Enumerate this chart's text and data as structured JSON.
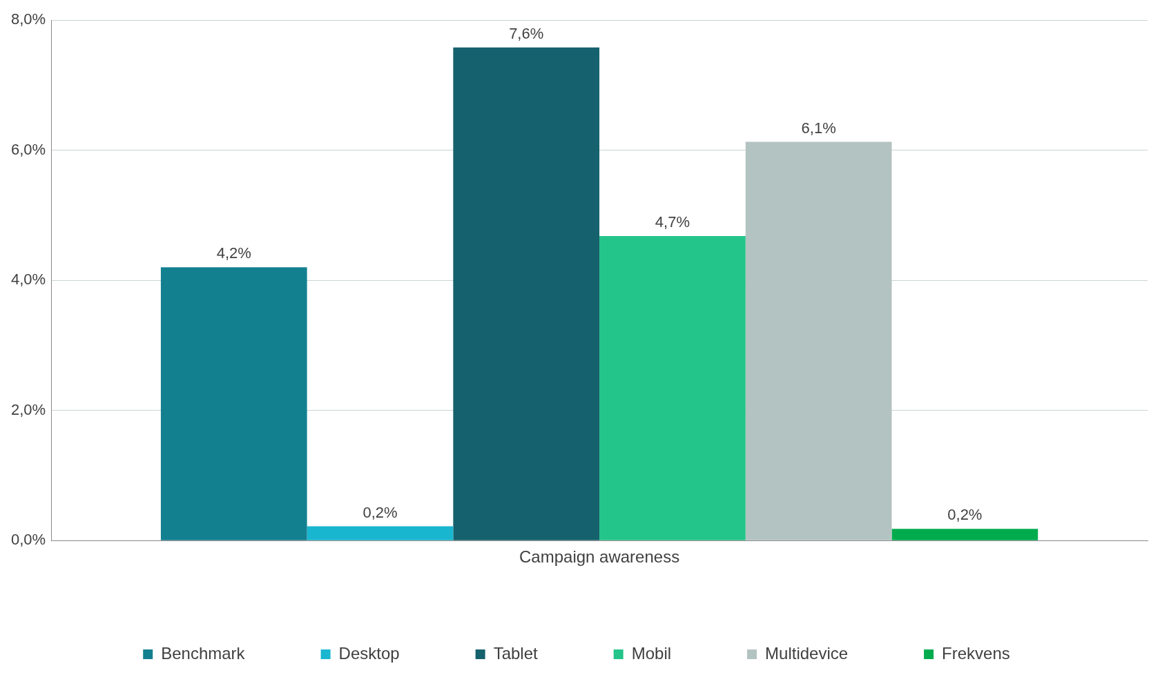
{
  "chart_data": {
    "type": "bar",
    "categories": [
      "Campaign awareness"
    ],
    "series": [
      {
        "name": "Benchmark",
        "color": "#138090",
        "values": [
          4.2
        ],
        "value_labels": [
          "4,2%"
        ]
      },
      {
        "name": "Desktop",
        "color": "#19b6d0",
        "values": [
          0.22
        ],
        "value_labels": [
          "0,2%"
        ]
      },
      {
        "name": "Tablet",
        "color": "#15616d",
        "values": [
          7.58
        ],
        "value_labels": [
          "7,6%"
        ]
      },
      {
        "name": "Mobil",
        "color": "#23c58a",
        "values": [
          4.68
        ],
        "value_labels": [
          "4,7%"
        ]
      },
      {
        "name": "Multidevice",
        "color": "#b3c3c2",
        "values": [
          6.13
        ],
        "value_labels": [
          "6,1%"
        ]
      },
      {
        "name": "Frekvens",
        "color": "#00ab4e",
        "values": [
          0.18
        ],
        "value_labels": [
          "0,2%"
        ]
      }
    ],
    "ylim": [
      0,
      8
    ],
    "yticks": [
      {
        "value": 0,
        "label": "0,0%"
      },
      {
        "value": 2,
        "label": "2,0%"
      },
      {
        "value": 4,
        "label": "4,0%"
      },
      {
        "value": 6,
        "label": "6,0%"
      },
      {
        "value": 8,
        "label": "8,0%"
      }
    ],
    "grid": "y",
    "legend": "bottom"
  }
}
